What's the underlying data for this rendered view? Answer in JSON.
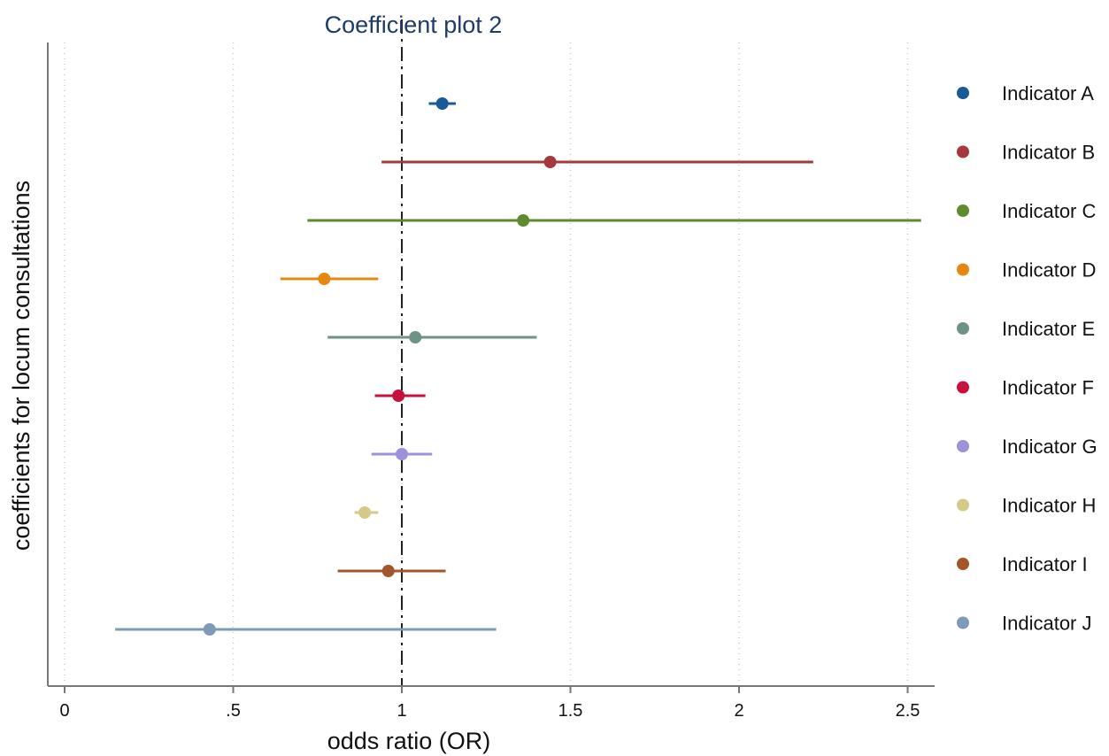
{
  "chart_data": {
    "type": "scatter",
    "subtype": "coefficient-plot",
    "title": "Coefficient plot 2",
    "xlabel": "odds ratio (OR)",
    "ylabel": "coefficients for locum consultations",
    "xlim": [
      -0.05,
      2.58
    ],
    "xticks": [
      0,
      0.5,
      1,
      1.5,
      2,
      2.5
    ],
    "xtick_labels": [
      "0",
      ".5",
      "1",
      "1.5",
      "2",
      "2.5"
    ],
    "grid": "vertical dotted",
    "reference_line": 1,
    "legend_position": "right",
    "series": [
      {
        "name": "Indicator A",
        "color": "#1a5a96",
        "estimate": 1.12,
        "ci_low": 1.08,
        "ci_high": 1.16
      },
      {
        "name": "Indicator B",
        "color": "#a6373a",
        "estimate": 1.44,
        "ci_low": 0.94,
        "ci_high": 2.22
      },
      {
        "name": "Indicator C",
        "color": "#5e8b2e",
        "estimate": 1.36,
        "ci_low": 0.72,
        "ci_high": 2.54
      },
      {
        "name": "Indicator D",
        "color": "#e7870f",
        "estimate": 0.77,
        "ci_low": 0.64,
        "ci_high": 0.93
      },
      {
        "name": "Indicator E",
        "color": "#6f9286",
        "estimate": 1.04,
        "ci_low": 0.78,
        "ci_high": 1.4
      },
      {
        "name": "Indicator F",
        "color": "#c8103c",
        "estimate": 0.99,
        "ci_low": 0.92,
        "ci_high": 1.07
      },
      {
        "name": "Indicator G",
        "color": "#9b92db",
        "estimate": 1.0,
        "ci_low": 0.91,
        "ci_high": 1.09
      },
      {
        "name": "Indicator H",
        "color": "#d6c888",
        "estimate": 0.89,
        "ci_low": 0.86,
        "ci_high": 0.93
      },
      {
        "name": "Indicator I",
        "color": "#a4562b",
        "estimate": 0.96,
        "ci_low": 0.81,
        "ci_high": 1.13
      },
      {
        "name": "Indicator J",
        "color": "#7d9bb6",
        "estimate": 0.43,
        "ci_low": 0.15,
        "ci_high": 1.28
      }
    ]
  }
}
